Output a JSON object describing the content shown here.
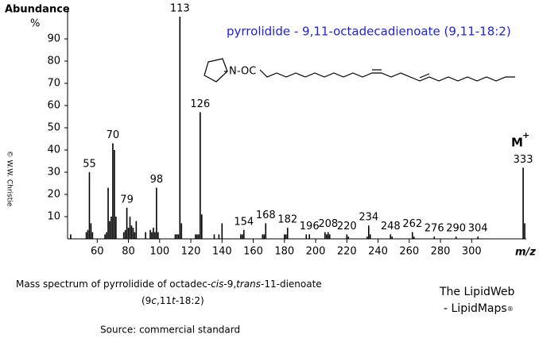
{
  "chart_data": {
    "type": "stick",
    "title": "pyrrolidide - 9,11-octadecadienoate (9,11-18:2)",
    "title_color": "#1f1fdf",
    "y_label": "Abundance",
    "y_unit": "%",
    "x_label": "m/z",
    "molecular_ion": {
      "symbol": "M",
      "charge": "+"
    },
    "structure": {
      "ring_atom": "N",
      "link": "-OC"
    },
    "xlim": [
      41,
      335
    ],
    "ylim": [
      0,
      100
    ],
    "xticks": [
      60,
      80,
      100,
      120,
      140,
      160,
      180,
      200,
      220,
      240,
      260,
      280,
      300
    ],
    "yticks": [
      10,
      20,
      30,
      40,
      50,
      60,
      70,
      80,
      90
    ],
    "color": "#000000",
    "series": [
      {
        "x": [
          55,
          70,
          79,
          98,
          113,
          126,
          154,
          168,
          182,
          196,
          208,
          220,
          234,
          248,
          262,
          276,
          290,
          304,
          333
        ],
        "values": [
          30,
          43,
          14,
          23,
          100,
          57,
          4,
          7,
          5,
          2,
          3,
          2,
          6,
          2,
          3,
          1,
          1,
          1,
          32
        ]
      },
      {
        "x": [
          43,
          53,
          54,
          56,
          57,
          65,
          66,
          67,
          68,
          69,
          71,
          72,
          77,
          78,
          80,
          81,
          82,
          83,
          84,
          85,
          91,
          94,
          95,
          96,
          97,
          99,
          110,
          111,
          112,
          114,
          123,
          124,
          125,
          127,
          135,
          138,
          140,
          152,
          153,
          166,
          167,
          180,
          181,
          194,
          206,
          207,
          209,
          221,
          233,
          235,
          249,
          263,
          334
        ],
        "values": [
          2,
          3,
          4,
          7,
          3,
          2,
          3,
          23,
          8,
          10,
          40,
          10,
          3,
          4,
          5,
          10,
          6,
          5,
          3,
          8,
          3,
          4,
          3,
          5,
          3,
          3,
          2,
          2,
          2,
          7,
          2,
          2,
          2,
          11,
          2,
          2,
          7,
          2,
          2,
          2,
          2,
          2,
          2,
          2,
          3,
          2,
          2,
          1,
          1,
          2,
          1,
          1,
          7
        ]
      }
    ]
  },
  "caption": {
    "line1": [
      "Mass spectrum of pyrrolidide of octadec-",
      "cis",
      "-9,",
      "trans",
      "-11-dienoate"
    ],
    "line2": [
      "(9",
      "c",
      ",11",
      "t",
      "-18:2)"
    ],
    "source": "Source:  commercial standard"
  },
  "branding": {
    "line1": "The LipidWeb",
    "line2": "- LipidMaps",
    "mark": "®"
  },
  "copyright": "© W.W. Christie"
}
